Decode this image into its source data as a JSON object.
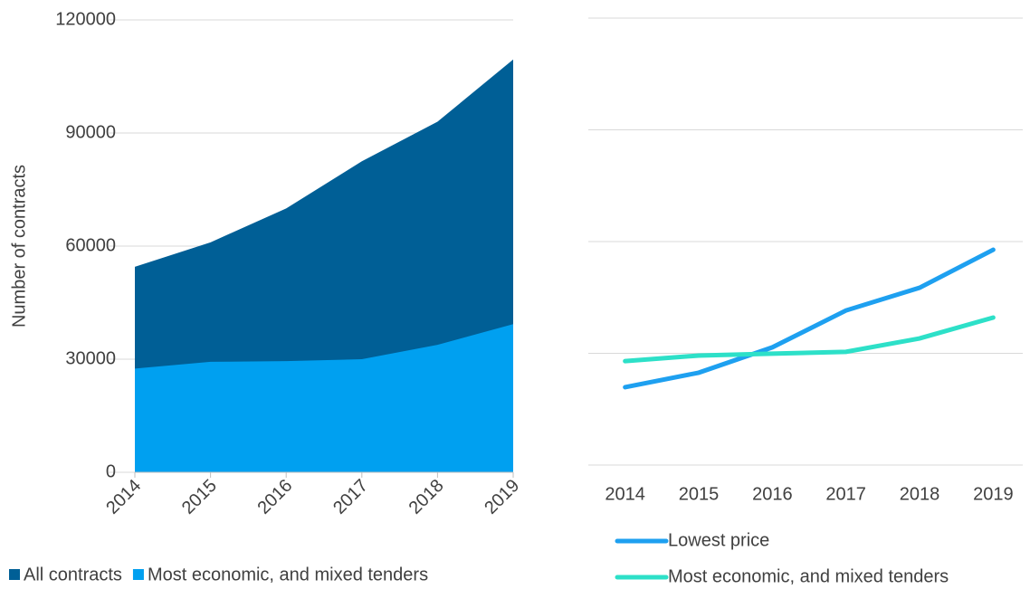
{
  "chart_data": [
    {
      "type": "area",
      "y_label": "Number of contracts",
      "categories": [
        "2014",
        "2015",
        "2016",
        "2017",
        "2018",
        "2019"
      ],
      "series": [
        {
          "name": "All contracts",
          "color": "#005f96",
          "values": [
            54500,
            61000,
            70000,
            82500,
            93000,
            109500
          ]
        },
        {
          "name": "Most economic, and mixed tenders",
          "color": "#00a0f0",
          "values": [
            27500,
            29300,
            29500,
            30000,
            33800,
            39300
          ]
        }
      ],
      "ylim": [
        0,
        120000
      ],
      "yticks": [
        0,
        30000,
        60000,
        90000,
        120000
      ],
      "grid": true,
      "legend": "bottom"
    },
    {
      "type": "line",
      "categories": [
        "2014",
        "2015",
        "2016",
        "2017",
        "2018",
        "2019"
      ],
      "series": [
        {
          "name": "Lowest price",
          "color": "#1ea0f0",
          "values": [
            20900,
            24800,
            31600,
            41500,
            47600,
            57800
          ]
        },
        {
          "name": "Most economic, and mixed tenders",
          "color": "#2de0c8",
          "values": [
            27900,
            29400,
            29900,
            30400,
            34000,
            39600
          ]
        }
      ],
      "ylim": [
        0,
        120000
      ],
      "yticks": [
        0,
        30000,
        60000,
        90000,
        120000
      ],
      "grid": true,
      "legend": "bottom"
    }
  ]
}
